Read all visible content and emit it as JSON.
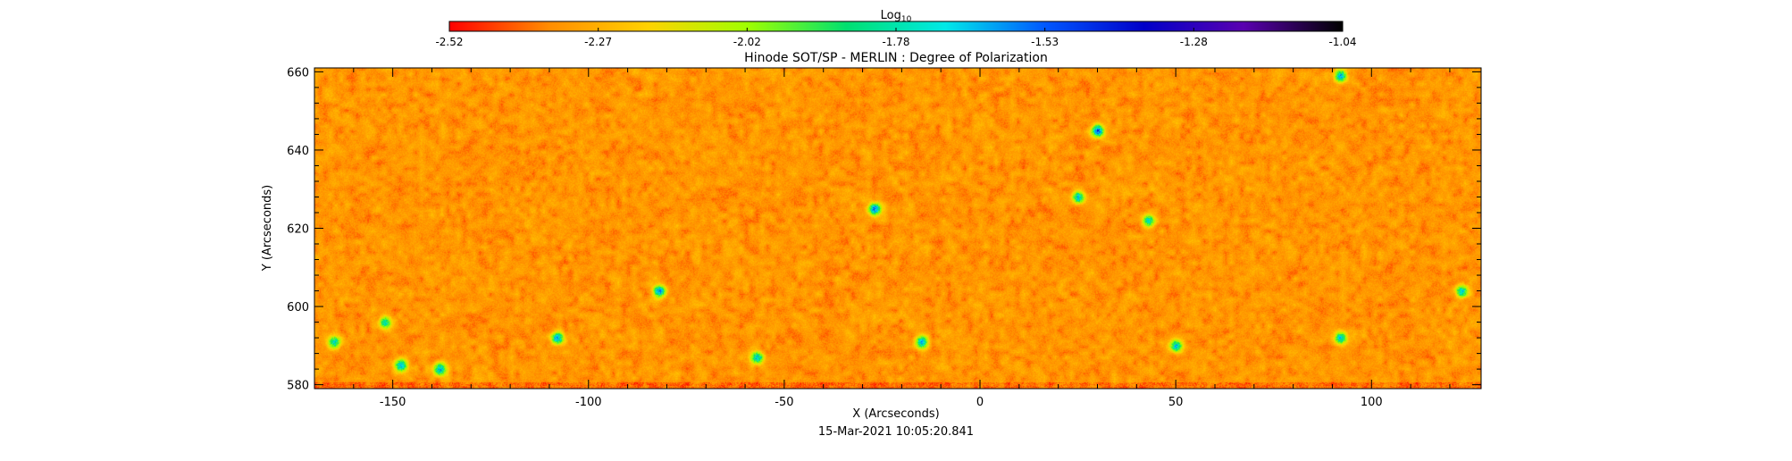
{
  "chart_data": {
    "type": "heatmap",
    "title": "Hinode SOT/SP - MERLIN : Degree of Polarization",
    "subtitle": "15-Mar-2021 10:05:20.841",
    "xlabel": "X (Arcseconds)",
    "ylabel": "Y (Arcseconds)",
    "xlim": [
      -170,
      128
    ],
    "ylim": [
      579,
      661
    ],
    "x_ticks": [
      -150,
      -100,
      -50,
      0,
      50,
      100
    ],
    "y_ticks": [
      580,
      600,
      620,
      640,
      660
    ],
    "grid": false,
    "colorbar": {
      "label_prefix": "Log",
      "label_subscript": "10",
      "position": "top",
      "range": [
        -2.52,
        -1.04
      ],
      "tick_labels": [
        "-2.52",
        "-2.27",
        "-2.02",
        "-1.78",
        "-1.53",
        "-1.28",
        "-1.04"
      ],
      "colors": [
        "#ff0000",
        "#ff8c00",
        "#ffd200",
        "#a0ff00",
        "#00e070",
        "#00e8e8",
        "#0058ff",
        "#0000c8",
        "#5a00b0",
        "#000000"
      ]
    },
    "field": {
      "typical_value": -2.33,
      "description": "mostly orange/yellow noise with scattered green/blue patches",
      "features": [
        {
          "x": 30,
          "y": 645,
          "value": -1.33
        },
        {
          "x": -27,
          "y": 625,
          "value": -1.38
        },
        {
          "x": -82,
          "y": 604,
          "value": -1.42
        },
        {
          "x": -108,
          "y": 592,
          "value": -1.45
        },
        {
          "x": -148,
          "y": 585,
          "value": -1.5
        },
        {
          "x": -138,
          "y": 584,
          "value": -1.48
        },
        {
          "x": -57,
          "y": 587,
          "value": -1.5
        },
        {
          "x": -15,
          "y": 591,
          "value": -1.5
        },
        {
          "x": 50,
          "y": 590,
          "value": -1.52
        },
        {
          "x": 92,
          "y": 659,
          "value": -1.48
        },
        {
          "x": 25,
          "y": 628,
          "value": -1.55
        },
        {
          "x": 43,
          "y": 622,
          "value": -1.6
        },
        {
          "x": 123,
          "y": 604,
          "value": -1.55
        },
        {
          "x": -165,
          "y": 591,
          "value": -1.6
        },
        {
          "x": -152,
          "y": 596,
          "value": -1.65
        },
        {
          "x": 92,
          "y": 592,
          "value": -1.58
        }
      ]
    }
  }
}
